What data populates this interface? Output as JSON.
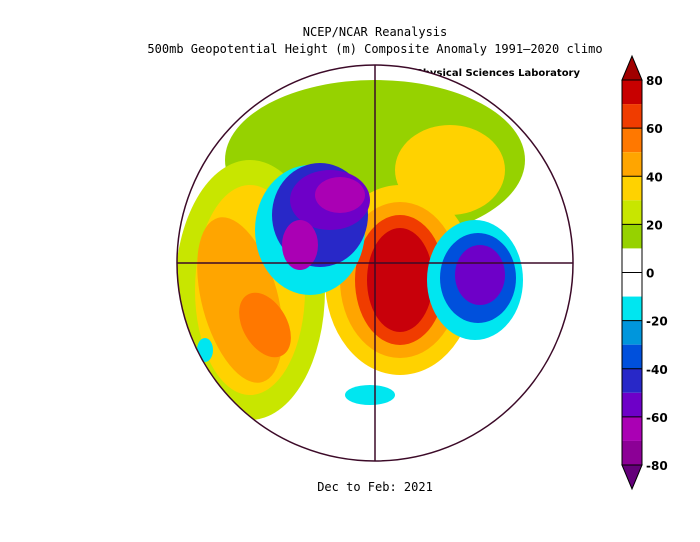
{
  "title": [
    "NCEP/NCAR Reanalysis",
    "500mb Geopotential Height (m) Composite Anomaly 1991–2020 climo"
  ],
  "credit": "NOAA Physical Sciences Laboratory",
  "footer": "Dec to Feb: 2021",
  "colorbar": {
    "clim": [
      -80,
      80
    ],
    "ticks": [
      80,
      60,
      40,
      20,
      0,
      -20,
      -40,
      -60,
      -80
    ],
    "over_color": "#a00000",
    "under_color": "#64007a",
    "colors": [
      "#c80000",
      "#f03c00",
      "#ff7800",
      "#ffa500",
      "#ffd200",
      "#c8e600",
      "#96d200",
      "#ffffff",
      "#ffffff",
      "#00e6f0",
      "#0096dc",
      "#0050dc",
      "#2828c8",
      "#6e00c8",
      "#aa00b4",
      "#8c0096"
    ]
  }
}
